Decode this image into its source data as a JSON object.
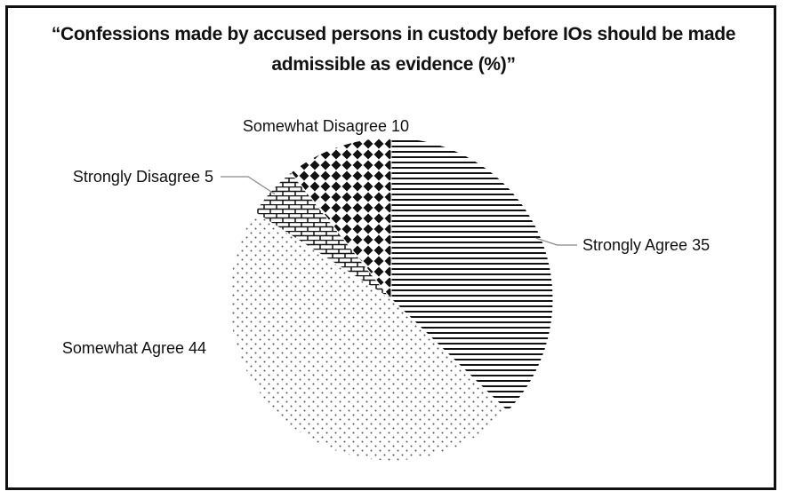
{
  "chart_data": {
    "type": "pie",
    "title": "“Confessions made by accused persons in custody before IOs should be made admissible as evidence (%)”",
    "slices": [
      {
        "label": "Strongly Agree",
        "value": 35,
        "pattern": "horizontal-lines"
      },
      {
        "label": "Somewhat Agree",
        "value": 44,
        "pattern": "dots"
      },
      {
        "label": "Strongly Disagree",
        "value": 5,
        "pattern": "bricks"
      },
      {
        "label": "Somewhat Disagree",
        "value": 10,
        "pattern": "diamonds"
      }
    ],
    "colors": {
      "ink": "#111111",
      "background": "#ffffff"
    }
  }
}
